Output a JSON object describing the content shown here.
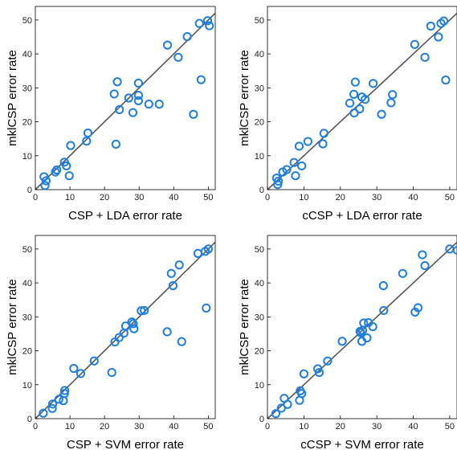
{
  "colors": {
    "marker": "#1f7fe0",
    "diagonal": "#555555",
    "axis": "#000000"
  },
  "chart_data": [
    {
      "type": "scatter",
      "xlabel": "CSP + LDA error rate",
      "ylabel": "mklCSP error rate",
      "xlim": [
        0,
        52
      ],
      "ylim": [
        0,
        54
      ],
      "xticks": [
        0,
        10,
        20,
        30,
        40,
        50
      ],
      "yticks": [
        0,
        10,
        20,
        30,
        40,
        50
      ],
      "diagonal": true,
      "grid": false,
      "points": [
        [
          2.5,
          3.8
        ],
        [
          2.8,
          1.2
        ],
        [
          3.1,
          2.6
        ],
        [
          5.8,
          5.2
        ],
        [
          6.2,
          5.8
        ],
        [
          8.4,
          8.1
        ],
        [
          9.0,
          7.0
        ],
        [
          9.8,
          4.1
        ],
        [
          10.2,
          13.0
        ],
        [
          14.8,
          14.3
        ],
        [
          15.2,
          16.7
        ],
        [
          22.8,
          28.2
        ],
        [
          23.3,
          13.4
        ],
        [
          23.7,
          31.8
        ],
        [
          24.3,
          23.6
        ],
        [
          27.0,
          27.0
        ],
        [
          28.2,
          22.7
        ],
        [
          29.8,
          31.4
        ],
        [
          29.8,
          27.8
        ],
        [
          29.8,
          26.2
        ],
        [
          32.8,
          25.2
        ],
        [
          35.8,
          25.2
        ],
        [
          38.2,
          42.6
        ],
        [
          41.3,
          39.0
        ],
        [
          43.9,
          45.1
        ],
        [
          45.7,
          22.2
        ],
        [
          47.4,
          49.0
        ],
        [
          47.9,
          32.4
        ],
        [
          49.8,
          49.8
        ],
        [
          50.3,
          48.3
        ]
      ]
    },
    {
      "type": "scatter",
      "xlabel": "cCSP + LDA error rate",
      "ylabel": "mklCSP error rate",
      "xlim": [
        0,
        52
      ],
      "ylim": [
        0,
        54
      ],
      "xticks": [
        0,
        10,
        20,
        30,
        40,
        50
      ],
      "yticks": [
        0,
        10,
        20,
        30,
        40,
        50
      ],
      "diagonal": true,
      "grid": false,
      "points": [
        [
          2.5,
          3.4
        ],
        [
          2.8,
          1.5
        ],
        [
          3.0,
          2.5
        ],
        [
          4.2,
          5.2
        ],
        [
          5.3,
          5.9
        ],
        [
          7.3,
          8.0
        ],
        [
          7.7,
          4.1
        ],
        [
          8.7,
          12.8
        ],
        [
          9.4,
          7.0
        ],
        [
          11.1,
          14.2
        ],
        [
          15.5,
          16.6
        ],
        [
          15.2,
          13.5
        ],
        [
          22.6,
          25.5
        ],
        [
          23.7,
          28.1
        ],
        [
          24.1,
          31.7
        ],
        [
          23.8,
          22.6
        ],
        [
          25.3,
          23.8
        ],
        [
          25.9,
          27.3
        ],
        [
          26.8,
          26.6
        ],
        [
          29.0,
          31.3
        ],
        [
          31.3,
          22.2
        ],
        [
          33.9,
          25.6
        ],
        [
          34.3,
          28.0
        ],
        [
          40.4,
          42.8
        ],
        [
          43.2,
          39.0
        ],
        [
          44.8,
          48.2
        ],
        [
          46.9,
          45.0
        ],
        [
          47.6,
          49.0
        ],
        [
          48.4,
          49.7
        ],
        [
          48.9,
          32.3
        ]
      ]
    },
    {
      "type": "scatter",
      "xlabel": "CSP + SVM error rate",
      "ylabel": "mklCSP error rate",
      "xlim": [
        0,
        52
      ],
      "ylim": [
        0,
        54
      ],
      "xticks": [
        0,
        10,
        20,
        30,
        40,
        50
      ],
      "yticks": [
        0,
        10,
        20,
        30,
        40,
        50
      ],
      "diagonal": true,
      "grid": false,
      "points": [
        [
          2.3,
          1.6
        ],
        [
          4.9,
          3.0
        ],
        [
          5.0,
          4.3
        ],
        [
          6.8,
          5.7
        ],
        [
          8.1,
          5.3
        ],
        [
          8.4,
          7.4
        ],
        [
          8.5,
          8.3
        ],
        [
          11.1,
          14.8
        ],
        [
          13.1,
          13.3
        ],
        [
          17.0,
          17.0
        ],
        [
          22.1,
          13.6
        ],
        [
          23.0,
          22.6
        ],
        [
          24.2,
          23.9
        ],
        [
          25.6,
          25.2
        ],
        [
          26.1,
          27.3
        ],
        [
          27.9,
          28.5
        ],
        [
          28.3,
          28.0
        ],
        [
          28.5,
          26.5
        ],
        [
          30.6,
          31.8
        ],
        [
          31.5,
          31.9
        ],
        [
          38.1,
          25.6
        ],
        [
          39.3,
          42.8
        ],
        [
          39.8,
          39.2
        ],
        [
          41.6,
          45.3
        ],
        [
          42.3,
          22.7
        ],
        [
          47.0,
          48.7
        ],
        [
          49.1,
          49.3
        ],
        [
          49.4,
          32.6
        ],
        [
          50.0,
          50.0
        ]
      ]
    },
    {
      "type": "scatter",
      "xlabel": "cCSP + SVM error rate",
      "ylabel": "mklCSP error rate",
      "xlim": [
        0,
        52
      ],
      "ylim": [
        0,
        54
      ],
      "xticks": [
        0,
        10,
        20,
        30,
        40,
        50
      ],
      "yticks": [
        0,
        10,
        20,
        30,
        40,
        50
      ],
      "diagonal": true,
      "grid": false,
      "points": [
        [
          2.3,
          1.5
        ],
        [
          3.8,
          3.1
        ],
        [
          4.6,
          6.0
        ],
        [
          5.5,
          4.2
        ],
        [
          8.8,
          5.4
        ],
        [
          9.0,
          8.2
        ],
        [
          9.4,
          7.4
        ],
        [
          10.0,
          13.2
        ],
        [
          13.8,
          14.7
        ],
        [
          14.2,
          13.6
        ],
        [
          16.5,
          17.0
        ],
        [
          20.5,
          22.8
        ],
        [
          25.4,
          25.7
        ],
        [
          25.6,
          25.3
        ],
        [
          25.9,
          22.8
        ],
        [
          26.1,
          26.0
        ],
        [
          26.4,
          28.2
        ],
        [
          27.3,
          23.8
        ],
        [
          27.7,
          28.3
        ],
        [
          28.9,
          27.1
        ],
        [
          31.8,
          39.2
        ],
        [
          31.9,
          31.9
        ],
        [
          37.1,
          42.8
        ],
        [
          40.5,
          31.4
        ],
        [
          41.3,
          32.7
        ],
        [
          42.5,
          48.3
        ],
        [
          43.2,
          45.1
        ],
        [
          50.0,
          50.0
        ],
        [
          52.1,
          49.6
        ]
      ]
    }
  ]
}
